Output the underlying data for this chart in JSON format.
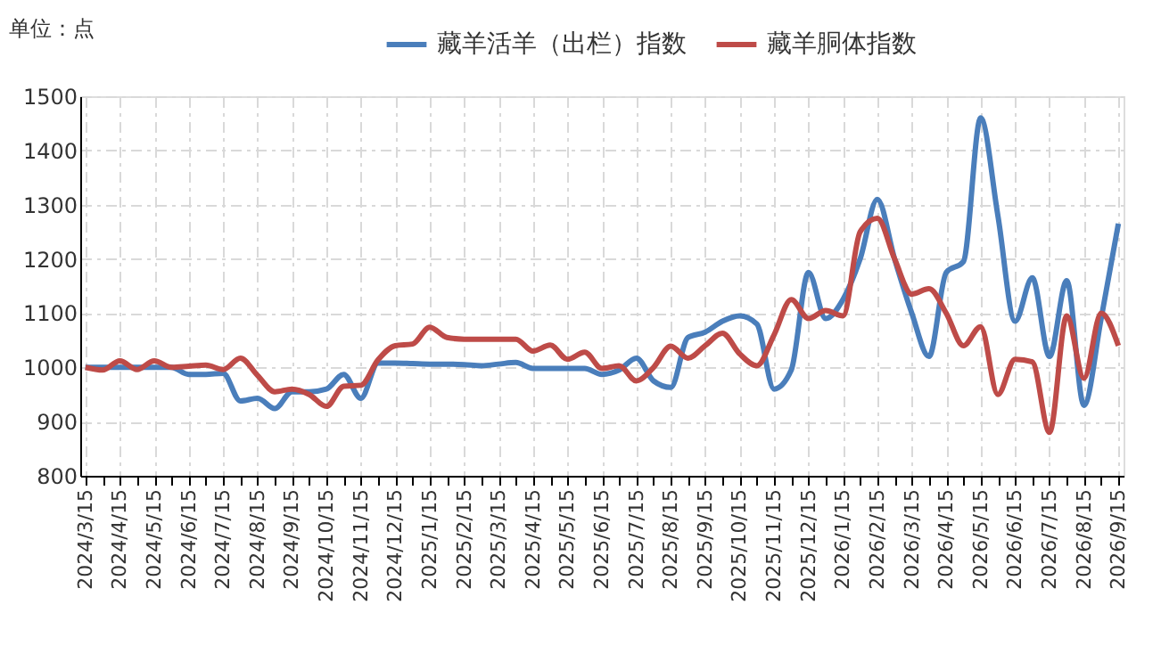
{
  "chart_data": {
    "type": "line",
    "ylabel": "单位：点",
    "categories": [
      "2024/3/15",
      null,
      "2024/4/15",
      null,
      "2024/5/15",
      null,
      "2024/6/15",
      null,
      "2024/7/15",
      null,
      "2024/8/15",
      null,
      "2024/9/15",
      null,
      "2024/10/15",
      null,
      "2024/11/15",
      null,
      "2024/12/15",
      null,
      "2025/1/15",
      null,
      "2025/2/15",
      null,
      "2025/3/15",
      null,
      "2025/4/15",
      null,
      "2025/5/15",
      null,
      "2025/6/15",
      null,
      "2025/7/15",
      null,
      "2025/8/15",
      null,
      "2025/9/15",
      null,
      "2025/10/15",
      null,
      "2025/11/15",
      null,
      "2025/12/15",
      null,
      "2026/1/15",
      null,
      "2026/2/15",
      null,
      "2026/3/15",
      null,
      "2026/4/15",
      null,
      "2026/5/15",
      null,
      "2026/6/15",
      null,
      "2026/7/15",
      null,
      "2026/8/15",
      null,
      "2026/9/15"
    ],
    "series": [
      {
        "name": "藏羊活羊（出栏）指数",
        "color": "#4a7ebb",
        "values": [
          1000,
          1000,
          1000,
          1000,
          1000,
          1000,
          987,
          987,
          989,
          938,
          943,
          924,
          955,
          955,
          960,
          987,
          943,
          1008,
          1008,
          1007,
          1006,
          1006,
          1005,
          1003,
          1006,
          1009,
          998,
          998,
          998,
          998,
          987,
          995,
          1017,
          975,
          963,
          1055,
          1065,
          1085,
          1095,
          1080,
          960,
          995,
          1175,
          1090,
          1125,
          1200,
          1310,
          1200,
          1100,
          1020,
          1175,
          1195,
          1460,
          1280,
          1085,
          1165,
          1020,
          1160,
          930,
          1090,
          1265
        ]
      },
      {
        "name": "藏羊胴体指数",
        "color": "#be4b48",
        "values": [
          1000,
          995,
          1012,
          996,
          1012,
          1000,
          1002,
          1004,
          996,
          1017,
          985,
          955,
          960,
          950,
          928,
          965,
          967,
          1014,
          1040,
          1043,
          1074,
          1055,
          1052,
          1052,
          1052,
          1052,
          1030,
          1041,
          1015,
          1028,
          998,
          1003,
          975,
          1000,
          1039,
          1017,
          1040,
          1063,
          1025,
          1003,
          1060,
          1125,
          1090,
          1105,
          1095,
          1250,
          1275,
          1200,
          1135,
          1145,
          1100,
          1040,
          1075,
          950,
          1015,
          1010,
          880,
          1095,
          980,
          1100,
          1040
        ]
      }
    ],
    "ylim": [
      800,
      1500
    ],
    "yticks": [
      800,
      900,
      1000,
      1100,
      1200,
      1300,
      1400,
      1500
    ],
    "grid": true,
    "legend": "top",
    "line_style": "solid",
    "marker": "none"
  }
}
